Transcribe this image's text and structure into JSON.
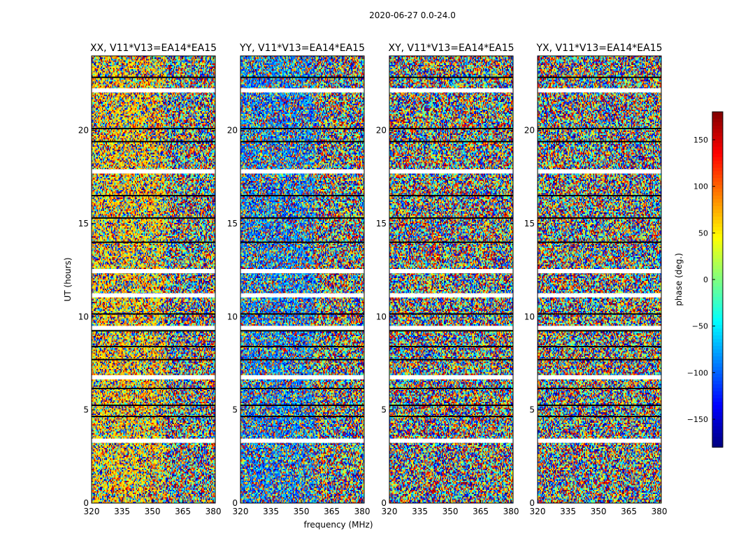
{
  "chart_data": {
    "type": "heatmap",
    "suptitle": "2020-06-27 0.0-24.0",
    "xlabel": "frequency (MHz)",
    "ylabel": "UT (hours)",
    "xlim": [
      320,
      381
    ],
    "ylim": [
      0,
      24
    ],
    "xticks": [
      "320",
      "335",
      "350",
      "365",
      "380"
    ],
    "yticks": [
      "0",
      "5",
      "10",
      "15",
      "20"
    ],
    "panels": [
      {
        "title": "XX, V11*V13=EA14*EA15",
        "polarization": "XX"
      },
      {
        "title": "YY, V11*V13=EA14*EA15",
        "polarization": "YY"
      },
      {
        "title": "XY, V11*V13=EA14*EA15",
        "polarization": "XY"
      },
      {
        "title": "YX, V11*V13=EA14*EA15",
        "polarization": "YX"
      }
    ],
    "colorbar": {
      "label": "phase (deg.)",
      "range": [
        -180,
        180
      ],
      "ticks": [
        "150",
        "100",
        "50",
        "0",
        "−50",
        "−100",
        "−150"
      ],
      "colormap": "jet"
    },
    "flagged_hours": [
      3.35,
      6.75,
      9.4,
      11.15,
      12.45,
      17.8,
      22.15
    ],
    "dark_rows_hours": [
      4.65,
      5.25,
      6.15,
      7.7,
      8.4,
      9.25,
      10.15,
      14.0,
      15.3,
      16.5,
      19.4,
      20.1,
      22.85
    ]
  }
}
